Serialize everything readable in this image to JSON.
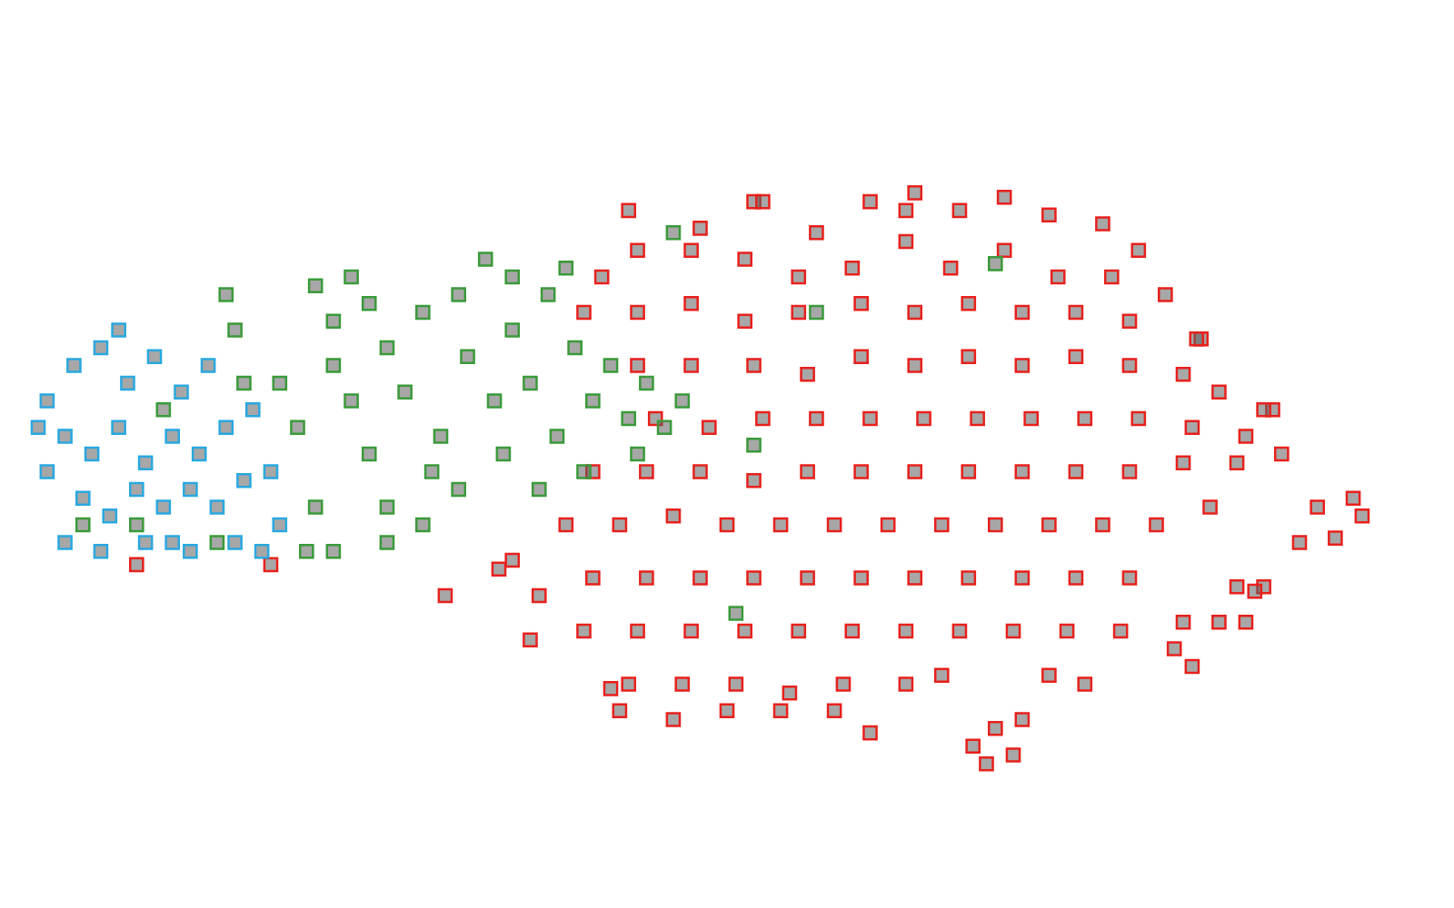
{
  "chart_data": {
    "type": "scatter",
    "xlim": [
      0,
      1600
    ],
    "ylim": [
      0,
      1000
    ],
    "grid": false,
    "tick_labels": false,
    "series": [
      {
        "color": "#29a8e0",
        "marker": "square",
        "x": [
          40,
          70,
          100,
          130,
          160,
          190,
          220,
          60,
          90,
          120,
          150,
          180,
          210,
          240,
          270,
          80,
          110,
          140,
          170,
          200,
          230,
          260,
          290,
          60,
          100,
          150,
          200,
          250,
          300,
          40,
          30,
          120,
          280,
          180
        ],
        "values": [
          560,
          600,
          620,
          580,
          610,
          570,
          600,
          520,
          500,
          530,
          490,
          520,
          500,
          530,
          550,
          450,
          430,
          460,
          440,
          460,
          440,
          470,
          480,
          400,
          390,
          400,
          390,
          400,
          420,
          480,
          530,
          640,
          390,
          400
        ]
      },
      {
        "color": "#3a9a3a",
        "marker": "square",
        "x": [
          80,
          140,
          230,
          170,
          260,
          240,
          250,
          300,
          320,
          340,
          360,
          380,
          340,
          330,
          360,
          400,
          420,
          440,
          460,
          480,
          500,
          510,
          530,
          540,
          560,
          580,
          600,
          610,
          630,
          650,
          670,
          690,
          710,
          730,
          750,
          420,
          460,
          500,
          550,
          590,
          640,
          700,
          400,
          380,
          560,
          740,
          420,
          360,
          470,
          620,
          830,
          1100,
          900,
          810
        ],
        "values": [
          420,
          420,
          400,
          550,
          580,
          680,
          640,
          580,
          530,
          690,
          650,
          700,
          440,
          390,
          390,
          670,
          620,
          570,
          660,
          520,
          680,
          610,
          720,
          560,
          640,
          580,
          680,
          520,
          620,
          560,
          600,
          540,
          580,
          530,
          560,
          440,
          420,
          460,
          500,
          460,
          480,
          500,
          500,
          560,
          700,
          750,
          400,
          600,
          480,
          710,
          510,
          715,
          660,
          320
        ]
      },
      {
        "color": "#e8201c",
        "marker": "square",
        "x": [
          690,
          770,
          830,
          900,
          960,
          1010,
          1060,
          1110,
          1160,
          1220,
          1260,
          1000,
          940,
          880,
          820,
          760,
          700,
          660,
          1050,
          1110,
          1170,
          1230,
          1290,
          640,
          700,
          760,
          820,
          880,
          950,
          1010,
          1070,
          1130,
          1190,
          1250,
          1330,
          700,
          760,
          830,
          890,
          950,
          1010,
          1070,
          1130,
          1190,
          1250,
          1310,
          1350,
          1410,
          720,
          780,
          840,
          900,
          960,
          1020,
          1080,
          1140,
          1200,
          1260,
          1320,
          1380,
          650,
          710,
          770,
          830,
          890,
          950,
          1010,
          1070,
          1130,
          1190,
          1250,
          1310,
          1370,
          1420,
          560,
          620,
          680,
          740,
          800,
          860,
          920,
          980,
          1040,
          1100,
          1160,
          1220,
          1280,
          1340,
          590,
          650,
          710,
          770,
          830,
          890,
          950,
          1010,
          1070,
          1130,
          1190,
          1250,
          1370,
          1400,
          580,
          640,
          700,
          760,
          820,
          880,
          940,
          1000,
          1060,
          1120,
          1180,
          1240,
          1320,
          1380,
          1310,
          690,
          750,
          810,
          870,
          930,
          1000,
          1040,
          1160,
          1200,
          680,
          740,
          800,
          860,
          920,
          960,
          1075,
          1100,
          1130,
          1090,
          1120,
          1460,
          1500,
          1440,
          1480,
          1510,
          485,
          840,
          1000,
          1325,
          1400,
          1390,
          1300,
          1350,
          140,
          290,
          545,
          670
        ],
        "values": [
          775,
          755,
          785,
          750,
          785,
          795,
          775,
          790,
          770,
          760,
          730,
          740,
          710,
          700,
          720,
          730,
          730,
          700,
          710,
          730,
          700,
          700,
          680,
          660,
          660,
          670,
          650,
          660,
          670,
          660,
          670,
          660,
          660,
          650,
          630,
          600,
          600,
          600,
          590,
          610,
          600,
          610,
          600,
          610,
          600,
          590,
          570,
          550,
          540,
          530,
          540,
          540,
          540,
          540,
          540,
          540,
          540,
          540,
          530,
          520,
          480,
          480,
          480,
          470,
          480,
          480,
          480,
          480,
          480,
          480,
          480,
          490,
          490,
          500,
          380,
          420,
          420,
          430,
          420,
          420,
          420,
          420,
          420,
          420,
          420,
          420,
          420,
          440,
          340,
          360,
          360,
          360,
          360,
          360,
          360,
          360,
          360,
          360,
          360,
          360,
          350,
          350,
          290,
          300,
          300,
          300,
          300,
          300,
          300,
          300,
          300,
          300,
          300,
          300,
          260,
          310,
          310,
          240,
          240,
          240,
          230,
          240,
          240,
          250,
          250,
          240,
          210,
          200,
          210,
          210,
          210,
          185,
          170,
          190,
          200,
          150,
          160,
          440,
          450,
          400,
          405,
          430,
          340,
          785,
          775,
          630,
          550,
          345,
          280,
          310,
          375,
          375,
          370,
          235
        ]
      }
    ]
  }
}
